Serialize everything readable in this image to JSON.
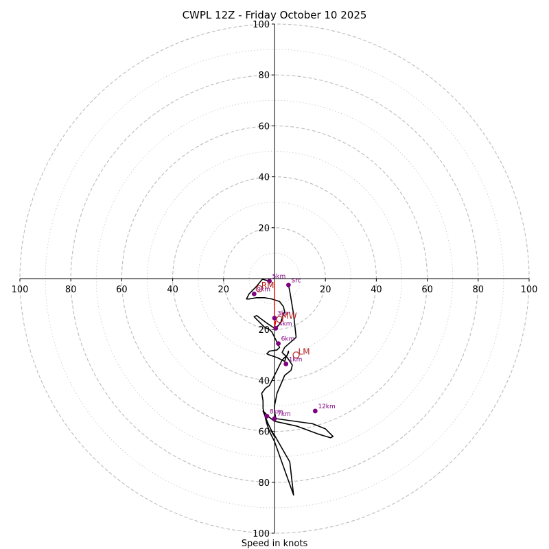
{
  "chart_data": {
    "type": "hodograph",
    "title": "CWPL 12Z - Friday October 10 2025",
    "xlabel": "Speed in knots",
    "units": "knots",
    "range": [
      -100,
      100
    ],
    "tick_values": [
      20,
      40,
      60,
      80,
      100
    ],
    "tick_labels": {
      "left": [
        "100",
        "80",
        "60",
        "40",
        "20"
      ],
      "right": [
        "20",
        "40",
        "60",
        "80",
        "100"
      ],
      "top": [
        "20",
        "40",
        "60",
        "80",
        "100"
      ],
      "bottom": [
        "20",
        "40",
        "60",
        "80",
        "100"
      ]
    },
    "rings_major": [
      20,
      40,
      60,
      80,
      100
    ],
    "rings_minor": [
      10,
      30,
      50,
      70,
      90
    ],
    "hodograph_trace": [
      [
        5.5,
        -2.5
      ],
      [
        6,
        -5
      ],
      [
        7.5,
        -14
      ],
      [
        8.5,
        -23
      ],
      [
        8,
        -23.5
      ],
      [
        4,
        -27
      ],
      [
        3,
        -29
      ],
      [
        5,
        -31
      ],
      [
        7,
        -34
      ],
      [
        6.5,
        -36
      ],
      [
        4,
        -38
      ],
      [
        1,
        -45
      ],
      [
        0,
        -50
      ],
      [
        0,
        -52
      ],
      [
        0.5,
        -55
      ],
      [
        15,
        -57
      ],
      [
        20,
        -59
      ],
      [
        23,
        -62
      ],
      [
        22,
        -62.5
      ],
      [
        17,
        -61
      ],
      [
        9,
        -58
      ],
      [
        0,
        -56
      ],
      [
        -2,
        -54.5
      ],
      [
        -3.5,
        -53
      ],
      [
        -4.5,
        -52
      ],
      [
        -2.5,
        -57
      ],
      [
        0,
        -62
      ],
      [
        -1.5,
        -59.5
      ],
      [
        0,
        -61.5
      ],
      [
        6,
        -72
      ],
      [
        7.5,
        -85
      ],
      [
        0,
        -64
      ],
      [
        -2,
        -60
      ],
      [
        -3,
        -57
      ],
      [
        -4.5,
        -51
      ],
      [
        -4.5,
        -48
      ],
      [
        -5,
        -45
      ],
      [
        -3.5,
        -43
      ],
      [
        -2,
        -42
      ],
      [
        -1,
        -40
      ],
      [
        0,
        -38
      ],
      [
        1,
        -36
      ],
      [
        2,
        -34
      ],
      [
        3,
        -32
      ],
      [
        4,
        -31
      ],
      [
        5,
        -30
      ],
      [
        5.5,
        -29
      ],
      [
        5.5,
        -28.5
      ],
      [
        5,
        -30
      ],
      [
        4.5,
        -31
      ],
      [
        4,
        -32.5
      ],
      [
        3,
        -32
      ],
      [
        1,
        -31
      ],
      [
        -2,
        -30
      ],
      [
        -3,
        -29.5
      ],
      [
        -2,
        -28.5
      ],
      [
        1,
        -28
      ],
      [
        2,
        -27
      ],
      [
        1,
        -25
      ],
      [
        0,
        -23
      ],
      [
        -1,
        -21
      ],
      [
        -2,
        -20
      ],
      [
        -4,
        -19
      ],
      [
        -6,
        -17
      ],
      [
        -8,
        -15
      ],
      [
        -7,
        -14.5
      ],
      [
        -5,
        -16
      ],
      [
        -3,
        -17.5
      ],
      [
        -1.5,
        -18.5
      ],
      [
        0,
        -19.5
      ],
      [
        1.5,
        -18.5
      ],
      [
        2.5,
        -17
      ],
      [
        3,
        -15.5
      ],
      [
        4,
        -13
      ],
      [
        3.5,
        -11
      ],
      [
        2,
        -9
      ],
      [
        -1,
        -8
      ],
      [
        -4,
        -7.5
      ],
      [
        -7,
        -7.5
      ],
      [
        -10,
        -8
      ],
      [
        -11,
        -8
      ],
      [
        -10,
        -6
      ],
      [
        -7,
        -3
      ],
      [
        -5,
        -0.5
      ],
      [
        -4.5,
        -0.3
      ],
      [
        -2,
        -1
      ]
    ],
    "storm_motion_line": [
      [
        0,
        -1
      ],
      [
        0,
        -16
      ],
      [
        0,
        -19.5
      ],
      [
        0.5,
        -16.5
      ]
    ],
    "levels": [
      {
        "label": "Src",
        "u": 5.5,
        "v": -2.5
      },
      {
        "label": "1km",
        "u": 4.5,
        "v": -33.5
      },
      {
        "label": "3km",
        "u": 0,
        "v": -15.5
      },
      {
        "label": "4km",
        "u": 0.5,
        "v": -19.5
      },
      {
        "label": "5km",
        "u": -2,
        "v": -1
      },
      {
        "label": "6km",
        "u": 1.5,
        "v": -25.5
      },
      {
        "label": "7km",
        "u": 0,
        "v": -55
      },
      {
        "label": "8km",
        "u": -3,
        "v": -54
      },
      {
        "label": "9km",
        "u": -8,
        "v": -6
      },
      {
        "label": "12km",
        "u": 16,
        "v": -52
      }
    ],
    "markers": [
      {
        "label": "RM",
        "u": -6,
        "v": -4
      },
      {
        "label": "MW",
        "u": 2,
        "v": -16
      },
      {
        "label": "LM",
        "u": 8.5,
        "v": -30
      }
    ],
    "colors": {
      "trace": "#000000",
      "storm_line": "#e00000",
      "level_dot": "#800080",
      "marker": "#b22222",
      "ring": "#bbbbbb"
    }
  }
}
